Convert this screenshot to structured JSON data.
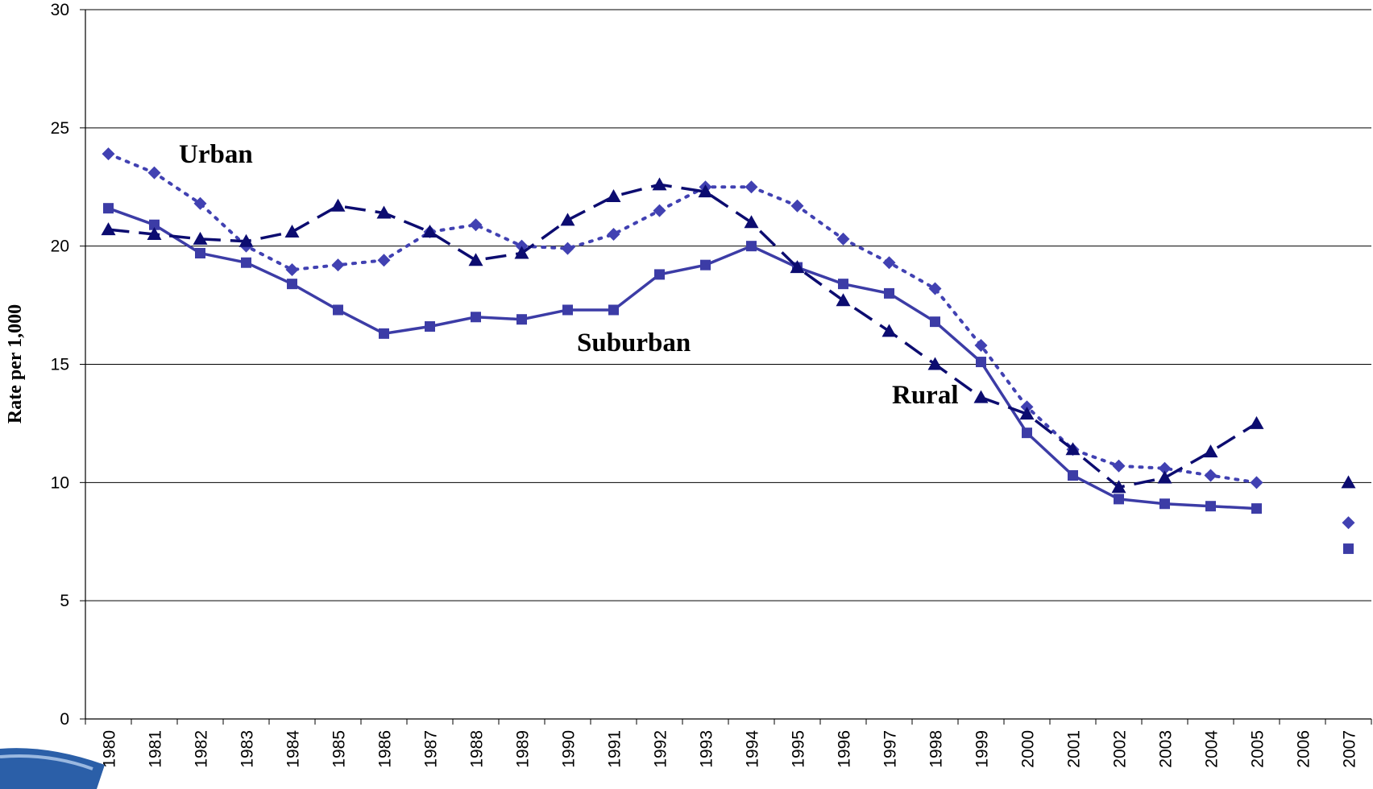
{
  "chart_data": {
    "type": "line",
    "y_label": "Rate per 1,000",
    "categories": [
      "1980",
      "1981",
      "1982",
      "1983",
      "1984",
      "1985",
      "1986",
      "1987",
      "1988",
      "1989",
      "1990",
      "1991",
      "1992",
      "1993",
      "1994",
      "1995",
      "1996",
      "1997",
      "1998",
      "1999",
      "2000",
      "2001",
      "2002",
      "2003",
      "2004",
      "2005",
      "2006",
      "2007"
    ],
    "series": [
      {
        "name": "Urban",
        "color": "#4141b2",
        "dash": "dotted",
        "marker": "diamond",
        "values": [
          23.9,
          23.1,
          21.8,
          20.0,
          19.0,
          19.2,
          19.4,
          20.6,
          20.9,
          20.0,
          19.9,
          20.5,
          21.5,
          22.5,
          22.5,
          21.7,
          20.3,
          19.3,
          18.2,
          15.8,
          13.2,
          11.4,
          10.7,
          10.6,
          10.3,
          10.0,
          null,
          8.3
        ]
      },
      {
        "name": "Suburban",
        "color": "#3c3ca6",
        "dash": "solid",
        "marker": "square",
        "values": [
          21.6,
          20.9,
          19.7,
          19.3,
          18.4,
          17.3,
          16.3,
          16.6,
          17.0,
          16.9,
          17.3,
          17.3,
          18.8,
          19.2,
          20.0,
          19.1,
          18.4,
          18.0,
          16.8,
          15.1,
          12.1,
          10.3,
          9.3,
          9.1,
          9.0,
          8.9,
          null,
          7.2
        ]
      },
      {
        "name": "Rural",
        "color": "#0c0c70",
        "dash": "dashed",
        "marker": "triangle",
        "values": [
          20.7,
          20.5,
          20.3,
          20.2,
          20.6,
          21.7,
          21.4,
          20.6,
          19.4,
          19.7,
          21.1,
          22.1,
          22.6,
          22.3,
          21.0,
          19.1,
          17.7,
          16.4,
          15.0,
          13.6,
          12.9,
          11.4,
          9.8,
          10.2,
          11.3,
          12.5,
          null,
          10.0
        ]
      }
    ],
    "ylim": [
      0,
      30
    ],
    "yticks": [
      0,
      5,
      10,
      15,
      20,
      25,
      30
    ],
    "grid": true
  }
}
